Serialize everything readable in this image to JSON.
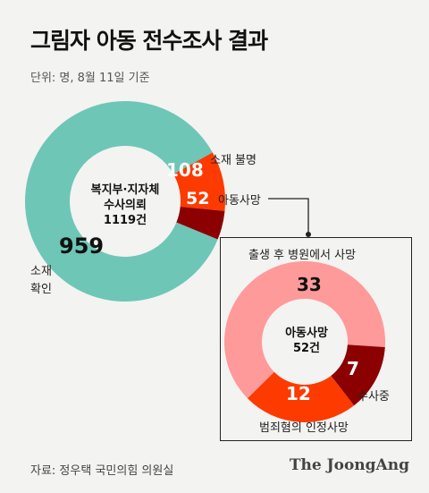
{
  "header": {
    "title": "그림자 아동 전수조사 결과",
    "unit": "단위: 명, 8월 11일 기준"
  },
  "colors": {
    "confirmed": "#6ec6b7",
    "unknown": "#fd3a00",
    "dead": "#8b0000",
    "born_dead": "#ff9a9a",
    "investigating": "#8b0000",
    "crime": "#fd3a00"
  },
  "chart_data": [
    {
      "type": "pie",
      "center_label": [
        "복지부·지자체",
        "수사의뢰",
        "1119건"
      ],
      "slices": [
        {
          "label": "소재 확인",
          "value": 959
        },
        {
          "label": "소재 불명",
          "value": 108
        },
        {
          "label": "아동사망",
          "value": 52
        }
      ]
    },
    {
      "type": "pie",
      "center_label": [
        "아동사망",
        "52건"
      ],
      "slices": [
        {
          "label": "출생 후 병원에서 사망",
          "value": 33
        },
        {
          "label": "수사중",
          "value": 7
        },
        {
          "label": "범죄혐의 인정사망",
          "value": 12
        }
      ]
    }
  ],
  "footer": {
    "source": "자료: 정우택 국민의힘 의원실",
    "brand": "The JoongAng"
  }
}
